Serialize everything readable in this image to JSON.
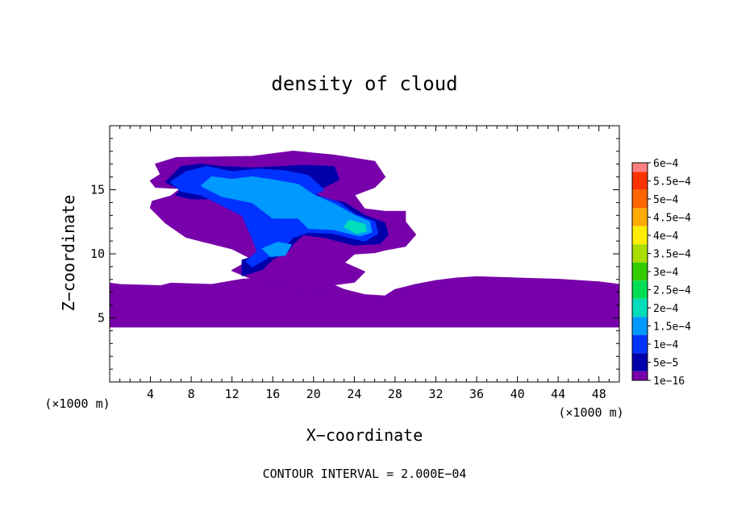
{
  "chart_data": {
    "type": "heatmap",
    "title": "density of cloud",
    "xlabel": "X−coordinate",
    "ylabel": "Z−coordinate",
    "x_unit_left": "(×1000 m)",
    "x_unit_right": "(×1000 m)",
    "footer": "CONTOUR INTERVAL = 2.000E−04",
    "xlim": [
      0,
      50
    ],
    "ylim": [
      0,
      20
    ],
    "xticks": [
      4,
      8,
      12,
      16,
      20,
      24,
      28,
      32,
      36,
      40,
      44,
      48
    ],
    "yticks": [
      5,
      10,
      15
    ],
    "grid": false,
    "colorbar": {
      "labels": [
        "6e−4",
        "5.5e−4",
        "5e−4",
        "4.5e−4",
        "4e−4",
        "3.5e−4",
        "3e−4",
        "2.5e−4",
        "2e−4",
        "1.5e−4",
        "1e−4",
        "5e−5",
        "1e−16"
      ],
      "colors": [
        "#ff0000",
        "#ff3300",
        "#ff6600",
        "#ffaa00",
        "#ffee00",
        "#aadd00",
        "#33cc00",
        "#00dd55",
        "#00ddbb",
        "#0099ff",
        "#0033ff",
        "#0000aa",
        "#7700aa"
      ],
      "top_color": "#ff8080"
    },
    "regions": [
      {
        "level": "1e−16",
        "polygon": [
          [
            0,
            4.3
          ],
          [
            50,
            4.3
          ],
          [
            50,
            7.6
          ],
          [
            48,
            7.8
          ],
          [
            44,
            8.0
          ],
          [
            40,
            8.1
          ],
          [
            36,
            8.2
          ],
          [
            34,
            8.1
          ],
          [
            32,
            7.9
          ],
          [
            30,
            7.6
          ],
          [
            28,
            7.2
          ],
          [
            27,
            6.7
          ],
          [
            25,
            6.8
          ],
          [
            23,
            7.2
          ],
          [
            21,
            7.9
          ],
          [
            20,
            8.3
          ],
          [
            17,
            8.2
          ],
          [
            13,
            8.0
          ],
          [
            10,
            7.6
          ],
          [
            6,
            7.7
          ],
          [
            5,
            7.5
          ],
          [
            1,
            7.6
          ],
          [
            0,
            7.7
          ]
        ]
      },
      {
        "level": "1e−16",
        "polygon": [
          [
            4.5,
            17.0
          ],
          [
            6.5,
            17.5
          ],
          [
            14,
            17.6
          ],
          [
            18,
            18.0
          ],
          [
            22,
            17.7
          ],
          [
            26,
            17.2
          ],
          [
            27,
            16.0
          ],
          [
            26,
            15.2
          ],
          [
            24,
            14.6
          ],
          [
            25,
            13.5
          ],
          [
            27,
            13.3
          ],
          [
            29,
            13.3
          ],
          [
            29,
            12.5
          ],
          [
            30,
            11.5
          ],
          [
            29,
            10.6
          ],
          [
            27,
            10.3
          ],
          [
            26,
            10.1
          ],
          [
            24,
            10.0
          ],
          [
            23,
            9.3
          ],
          [
            25,
            8.6
          ],
          [
            24,
            7.8
          ],
          [
            22,
            7.6
          ],
          [
            20,
            7.0
          ],
          [
            18,
            7.3
          ],
          [
            16,
            7.6
          ],
          [
            13.5,
            8.2
          ],
          [
            12,
            8.7
          ],
          [
            14,
            9.6
          ],
          [
            12,
            10.4
          ],
          [
            10,
            10.8
          ],
          [
            7.5,
            11.3
          ],
          [
            5.5,
            12.4
          ],
          [
            4,
            13.6
          ],
          [
            4.2,
            14.1
          ],
          [
            6,
            14.5
          ],
          [
            7,
            15.1
          ],
          [
            4.5,
            15.2
          ],
          [
            4,
            15.7
          ],
          [
            5,
            16.2
          ]
        ]
      },
      {
        "level": "5e−5",
        "polygon": [
          [
            5.5,
            15.6
          ],
          [
            7,
            16.8
          ],
          [
            9,
            17.0
          ],
          [
            11,
            16.8
          ],
          [
            14,
            16.7
          ],
          [
            17,
            16.8
          ],
          [
            19,
            16.9
          ],
          [
            22,
            16.8
          ],
          [
            22.5,
            15.8
          ],
          [
            20,
            14.8
          ],
          [
            21,
            14.3
          ],
          [
            23,
            14.0
          ],
          [
            25,
            13.0
          ],
          [
            27,
            12.4
          ],
          [
            27.3,
            11.5
          ],
          [
            26.5,
            10.8
          ],
          [
            24,
            10.7
          ],
          [
            21,
            11.3
          ],
          [
            19,
            11.5
          ],
          [
            18,
            10.8
          ],
          [
            17.5,
            10.2
          ],
          [
            16,
            9.6
          ],
          [
            15,
            8.8
          ],
          [
            13,
            8.3
          ],
          [
            13,
            9.5
          ],
          [
            15,
            10.0
          ],
          [
            14.5,
            11.2
          ],
          [
            13.2,
            13.3
          ],
          [
            11,
            14.3
          ],
          [
            8,
            14.3
          ],
          [
            6.5,
            14.6
          ],
          [
            7,
            15.0
          ]
        ]
      },
      {
        "level": "1e−4",
        "polygon": [
          [
            6,
            15.6
          ],
          [
            7.5,
            16.4
          ],
          [
            9.5,
            16.8
          ],
          [
            12,
            16.4
          ],
          [
            14.5,
            16.6
          ],
          [
            17,
            16.5
          ],
          [
            19.5,
            16.1
          ],
          [
            21,
            15.0
          ],
          [
            20,
            14.6
          ],
          [
            22.5,
            14.0
          ],
          [
            24,
            13.1
          ],
          [
            26,
            12.5
          ],
          [
            26.3,
            11.6
          ],
          [
            25,
            11.0
          ],
          [
            22,
            11.6
          ],
          [
            19.5,
            11.7
          ],
          [
            18,
            11.3
          ],
          [
            17,
            10.4
          ],
          [
            15.5,
            9.7
          ],
          [
            14,
            9.0
          ],
          [
            13.4,
            9.4
          ],
          [
            14.5,
            10.2
          ],
          [
            14,
            11.2
          ],
          [
            13,
            13.0
          ],
          [
            11,
            13.8
          ],
          [
            9,
            14.6
          ],
          [
            7,
            14.9
          ]
        ]
      },
      {
        "level": "1.5e−4",
        "polygon": [
          [
            9,
            15.3
          ],
          [
            10,
            16.0
          ],
          [
            12,
            15.8
          ],
          [
            14,
            16.0
          ],
          [
            16.5,
            15.7
          ],
          [
            18.5,
            15.4
          ],
          [
            20,
            14.6
          ],
          [
            22,
            13.9
          ],
          [
            24,
            13.0
          ],
          [
            25.5,
            12.5
          ],
          [
            25.7,
            11.7
          ],
          [
            24.5,
            11.4
          ],
          [
            22,
            11.9
          ],
          [
            19.5,
            12.0
          ],
          [
            18.5,
            12.8
          ],
          [
            16,
            12.8
          ],
          [
            14,
            14.0
          ],
          [
            11,
            14.5
          ]
        ]
      },
      {
        "level": "2e−4",
        "polygon": [
          [
            23.5,
            12.6
          ],
          [
            25,
            12.3
          ],
          [
            25.2,
            11.8
          ],
          [
            24.2,
            11.6
          ],
          [
            23,
            12.1
          ]
        ]
      },
      {
        "level": "1.5e−4",
        "polygon": [
          [
            15,
            10.4
          ],
          [
            16.5,
            10.9
          ],
          [
            17.8,
            10.7
          ],
          [
            17.2,
            9.9
          ],
          [
            15.8,
            9.8
          ]
        ]
      }
    ]
  }
}
